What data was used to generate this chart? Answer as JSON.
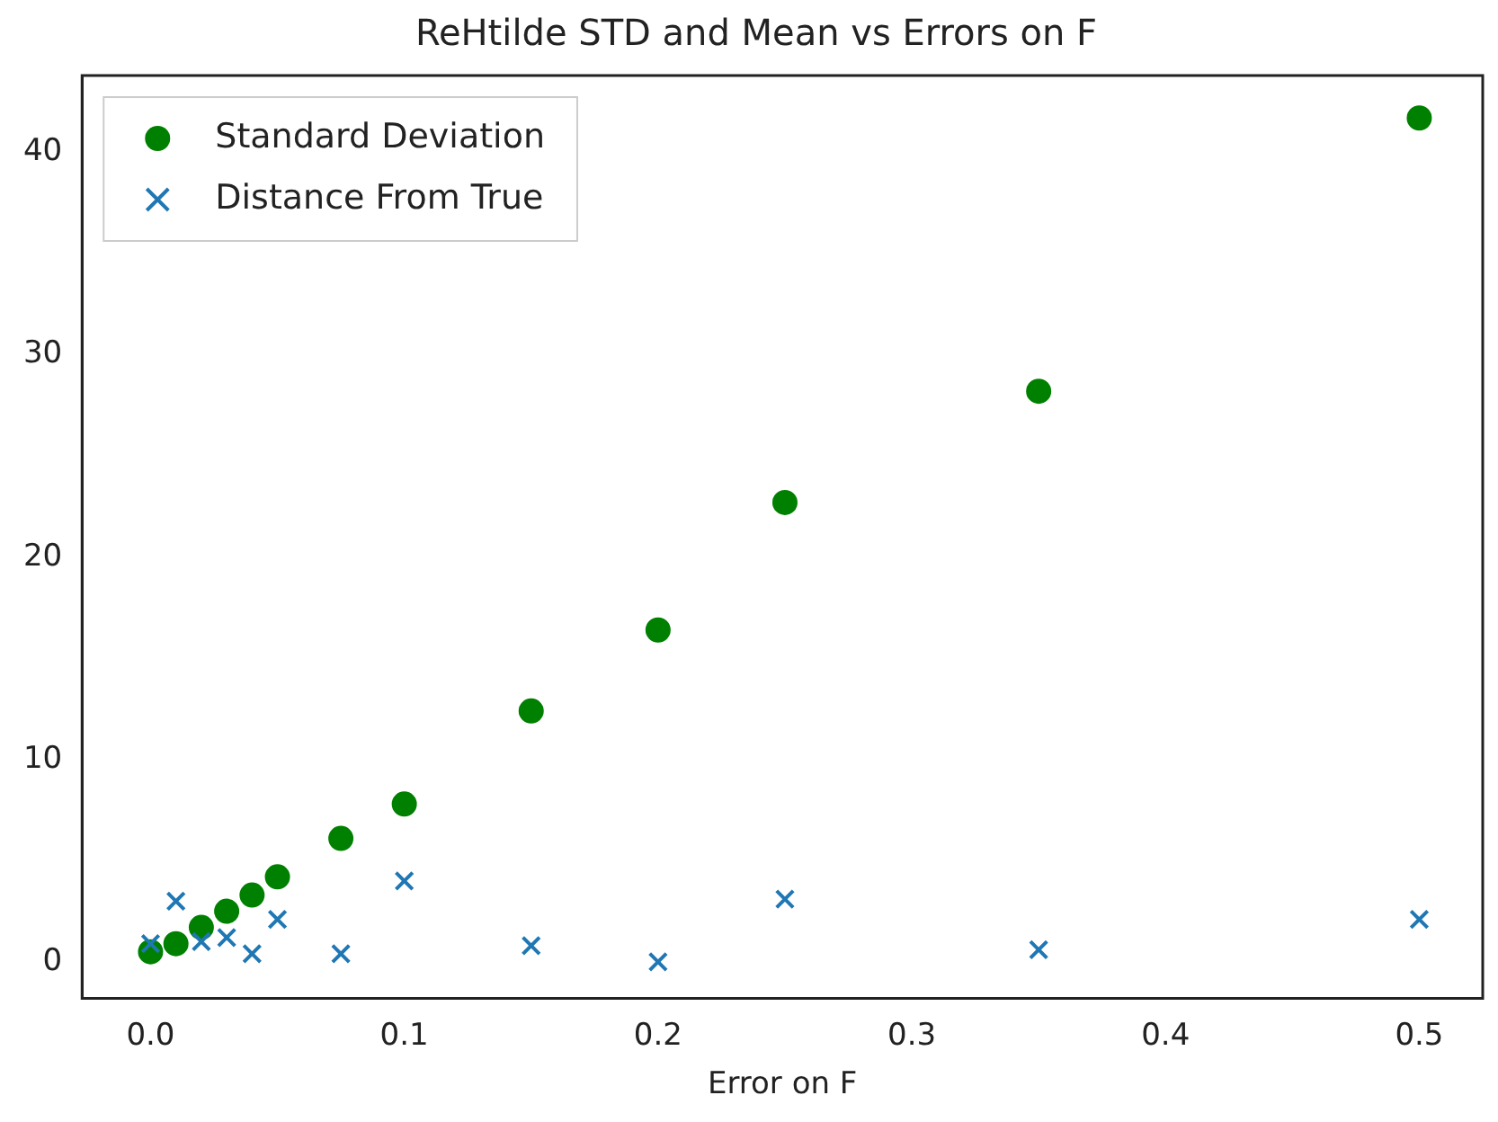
{
  "chart_data": {
    "type": "scatter",
    "title": "ReHtilde STD and Mean vs Errors on F",
    "xlabel": "Error on F",
    "x": [
      0,
      0.01,
      0.02,
      0.03,
      0.04,
      0.05,
      0.075,
      0.1,
      0.15,
      0.2,
      0.25,
      0.35,
      0.5
    ],
    "series": [
      {
        "name": "Standard Deviation",
        "color": "#008000",
        "marker": "circle",
        "values": [
          0.5,
          0.9,
          1.7,
          2.5,
          3.3,
          4.2,
          6.1,
          7.8,
          12.4,
          16.4,
          22.7,
          28.2,
          41.7
        ]
      },
      {
        "name": "Distance From True",
        "color": "#1f77b4",
        "marker": "cross",
        "values": [
          0.9,
          3.0,
          1.0,
          1.2,
          0.4,
          2.1,
          0.4,
          4.0,
          0.8,
          0.0,
          3.1,
          0.6,
          2.1
        ]
      }
    ],
    "xlim": [
      -0.027,
      0.525
    ],
    "xticks": [
      {
        "value": 0,
        "label": "0.0"
      },
      0.1,
      0.2,
      0.3,
      0.4,
      0.5
    ],
    "ylim": [
      -1.8,
      43.8
    ],
    "yticks": [
      0,
      10,
      20,
      30,
      40
    ],
    "grid": false,
    "legend": "top left"
  }
}
